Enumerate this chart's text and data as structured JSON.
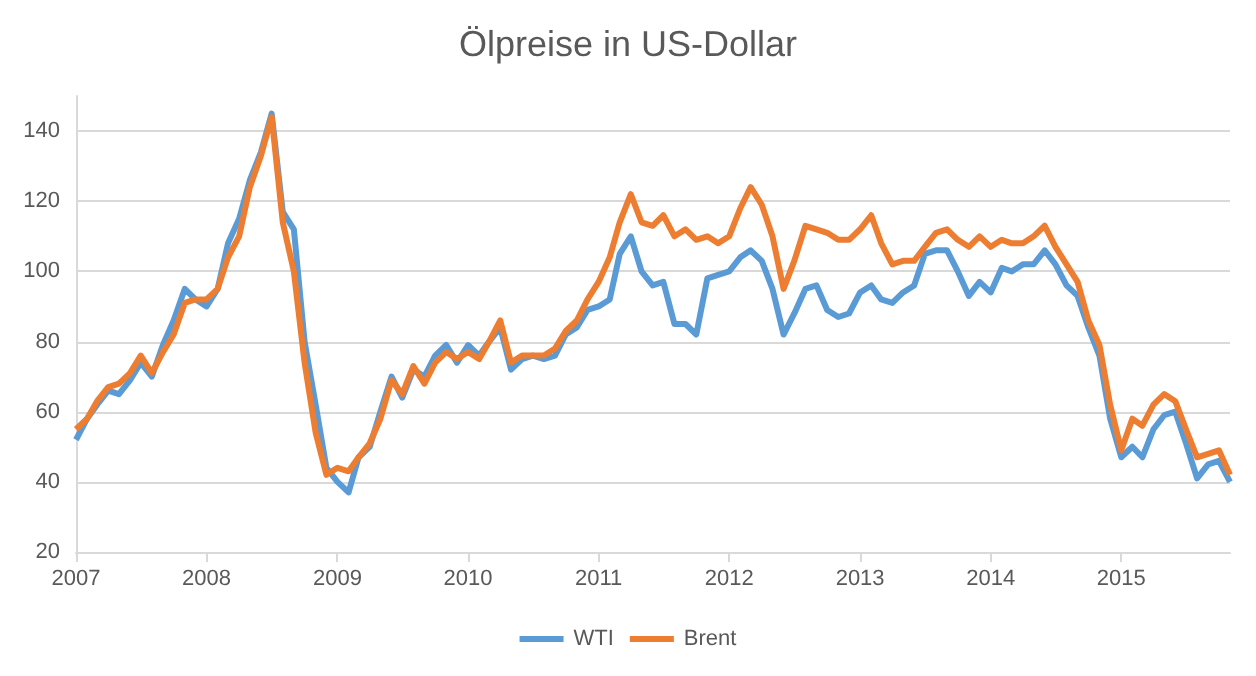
{
  "chart_data": {
    "type": "line",
    "title": "Ölpreise in US-Dollar",
    "x": [
      "2007-01",
      "2007-02",
      "2007-03",
      "2007-04",
      "2007-05",
      "2007-06",
      "2007-07",
      "2007-08",
      "2007-09",
      "2007-10",
      "2007-11",
      "2007-12",
      "2008-01",
      "2008-02",
      "2008-03",
      "2008-04",
      "2008-05",
      "2008-06",
      "2008-07",
      "2008-08",
      "2008-09",
      "2008-10",
      "2008-11",
      "2008-12",
      "2009-01",
      "2009-02",
      "2009-03",
      "2009-04",
      "2009-05",
      "2009-06",
      "2009-07",
      "2009-08",
      "2009-09",
      "2009-10",
      "2009-11",
      "2009-12",
      "2010-01",
      "2010-02",
      "2010-03",
      "2010-04",
      "2010-05",
      "2010-06",
      "2010-07",
      "2010-08",
      "2010-09",
      "2010-10",
      "2010-11",
      "2010-12",
      "2011-01",
      "2011-02",
      "2011-03",
      "2011-04",
      "2011-05",
      "2011-06",
      "2011-07",
      "2011-08",
      "2011-09",
      "2011-10",
      "2011-11",
      "2011-12",
      "2012-01",
      "2012-02",
      "2012-03",
      "2012-04",
      "2012-05",
      "2012-06",
      "2012-07",
      "2012-08",
      "2012-09",
      "2012-10",
      "2012-11",
      "2012-12",
      "2013-01",
      "2013-02",
      "2013-03",
      "2013-04",
      "2013-05",
      "2013-06",
      "2013-07",
      "2013-08",
      "2013-09",
      "2013-10",
      "2013-11",
      "2013-12",
      "2014-01",
      "2014-02",
      "2014-03",
      "2014-04",
      "2014-05",
      "2014-06",
      "2014-07",
      "2014-08",
      "2014-09",
      "2014-10",
      "2014-11",
      "2014-12",
      "2015-01",
      "2015-02",
      "2015-03",
      "2015-04",
      "2015-05",
      "2015-06",
      "2015-07",
      "2015-08",
      "2015-09",
      "2015-10",
      "2015-11"
    ],
    "series": [
      {
        "name": "WTI",
        "color": "#5b9bd5",
        "values": [
          52,
          58,
          62,
          66,
          65,
          69,
          74,
          70,
          79,
          86,
          95,
          92,
          90,
          95,
          108,
          115,
          126,
          134,
          145,
          117,
          112,
          80,
          62,
          44,
          40,
          37,
          47,
          50,
          60,
          70,
          64,
          72,
          70,
          76,
          79,
          74,
          79,
          76,
          80,
          84,
          72,
          75,
          76,
          75,
          76,
          82,
          84,
          89,
          90,
          92,
          105,
          110,
          100,
          96,
          97,
          85,
          85,
          82,
          98,
          99,
          100,
          104,
          106,
          103,
          95,
          82,
          88,
          95,
          96,
          89,
          87,
          88,
          94,
          96,
          92,
          91,
          94,
          96,
          105,
          106,
          106,
          100,
          93,
          97,
          94,
          101,
          100,
          102,
          102,
          106,
          102,
          96,
          93,
          84,
          76,
          58,
          47,
          50,
          47,
          55,
          59,
          60,
          51,
          41,
          45,
          46,
          40
        ]
      },
      {
        "name": "Brent",
        "color": "#ed7d31",
        "values": [
          55,
          58,
          63,
          67,
          68,
          71,
          76,
          71,
          77,
          82,
          91,
          92,
          92,
          95,
          104,
          110,
          124,
          133,
          144,
          114,
          100,
          74,
          54,
          42,
          44,
          43,
          47,
          51,
          58,
          69,
          65,
          73,
          68,
          74,
          77,
          75,
          77,
          75,
          80,
          86,
          74,
          76,
          76,
          76,
          78,
          83,
          86,
          92,
          97,
          104,
          114,
          122,
          114,
          113,
          116,
          110,
          112,
          109,
          110,
          108,
          110,
          118,
          124,
          119,
          110,
          95,
          103,
          113,
          112,
          111,
          109,
          109,
          112,
          116,
          108,
          102,
          103,
          103,
          107,
          111,
          112,
          109,
          107,
          110,
          107,
          109,
          108,
          108,
          110,
          113,
          107,
          102,
          97,
          86,
          79,
          62,
          49,
          58,
          56,
          62,
          65,
          63,
          55,
          47,
          48,
          49,
          42
        ]
      }
    ],
    "xlim": [
      "2007-01-01",
      "2015-11-01"
    ],
    "xticks": [
      "2007",
      "2008",
      "2009",
      "2010",
      "2011",
      "2012",
      "2013",
      "2014",
      "2015"
    ],
    "ylim": [
      20,
      150
    ],
    "yticks": [
      20,
      40,
      60,
      80,
      100,
      120,
      140
    ],
    "grid": "y",
    "legend": "bottom",
    "line_style": "solid"
  }
}
